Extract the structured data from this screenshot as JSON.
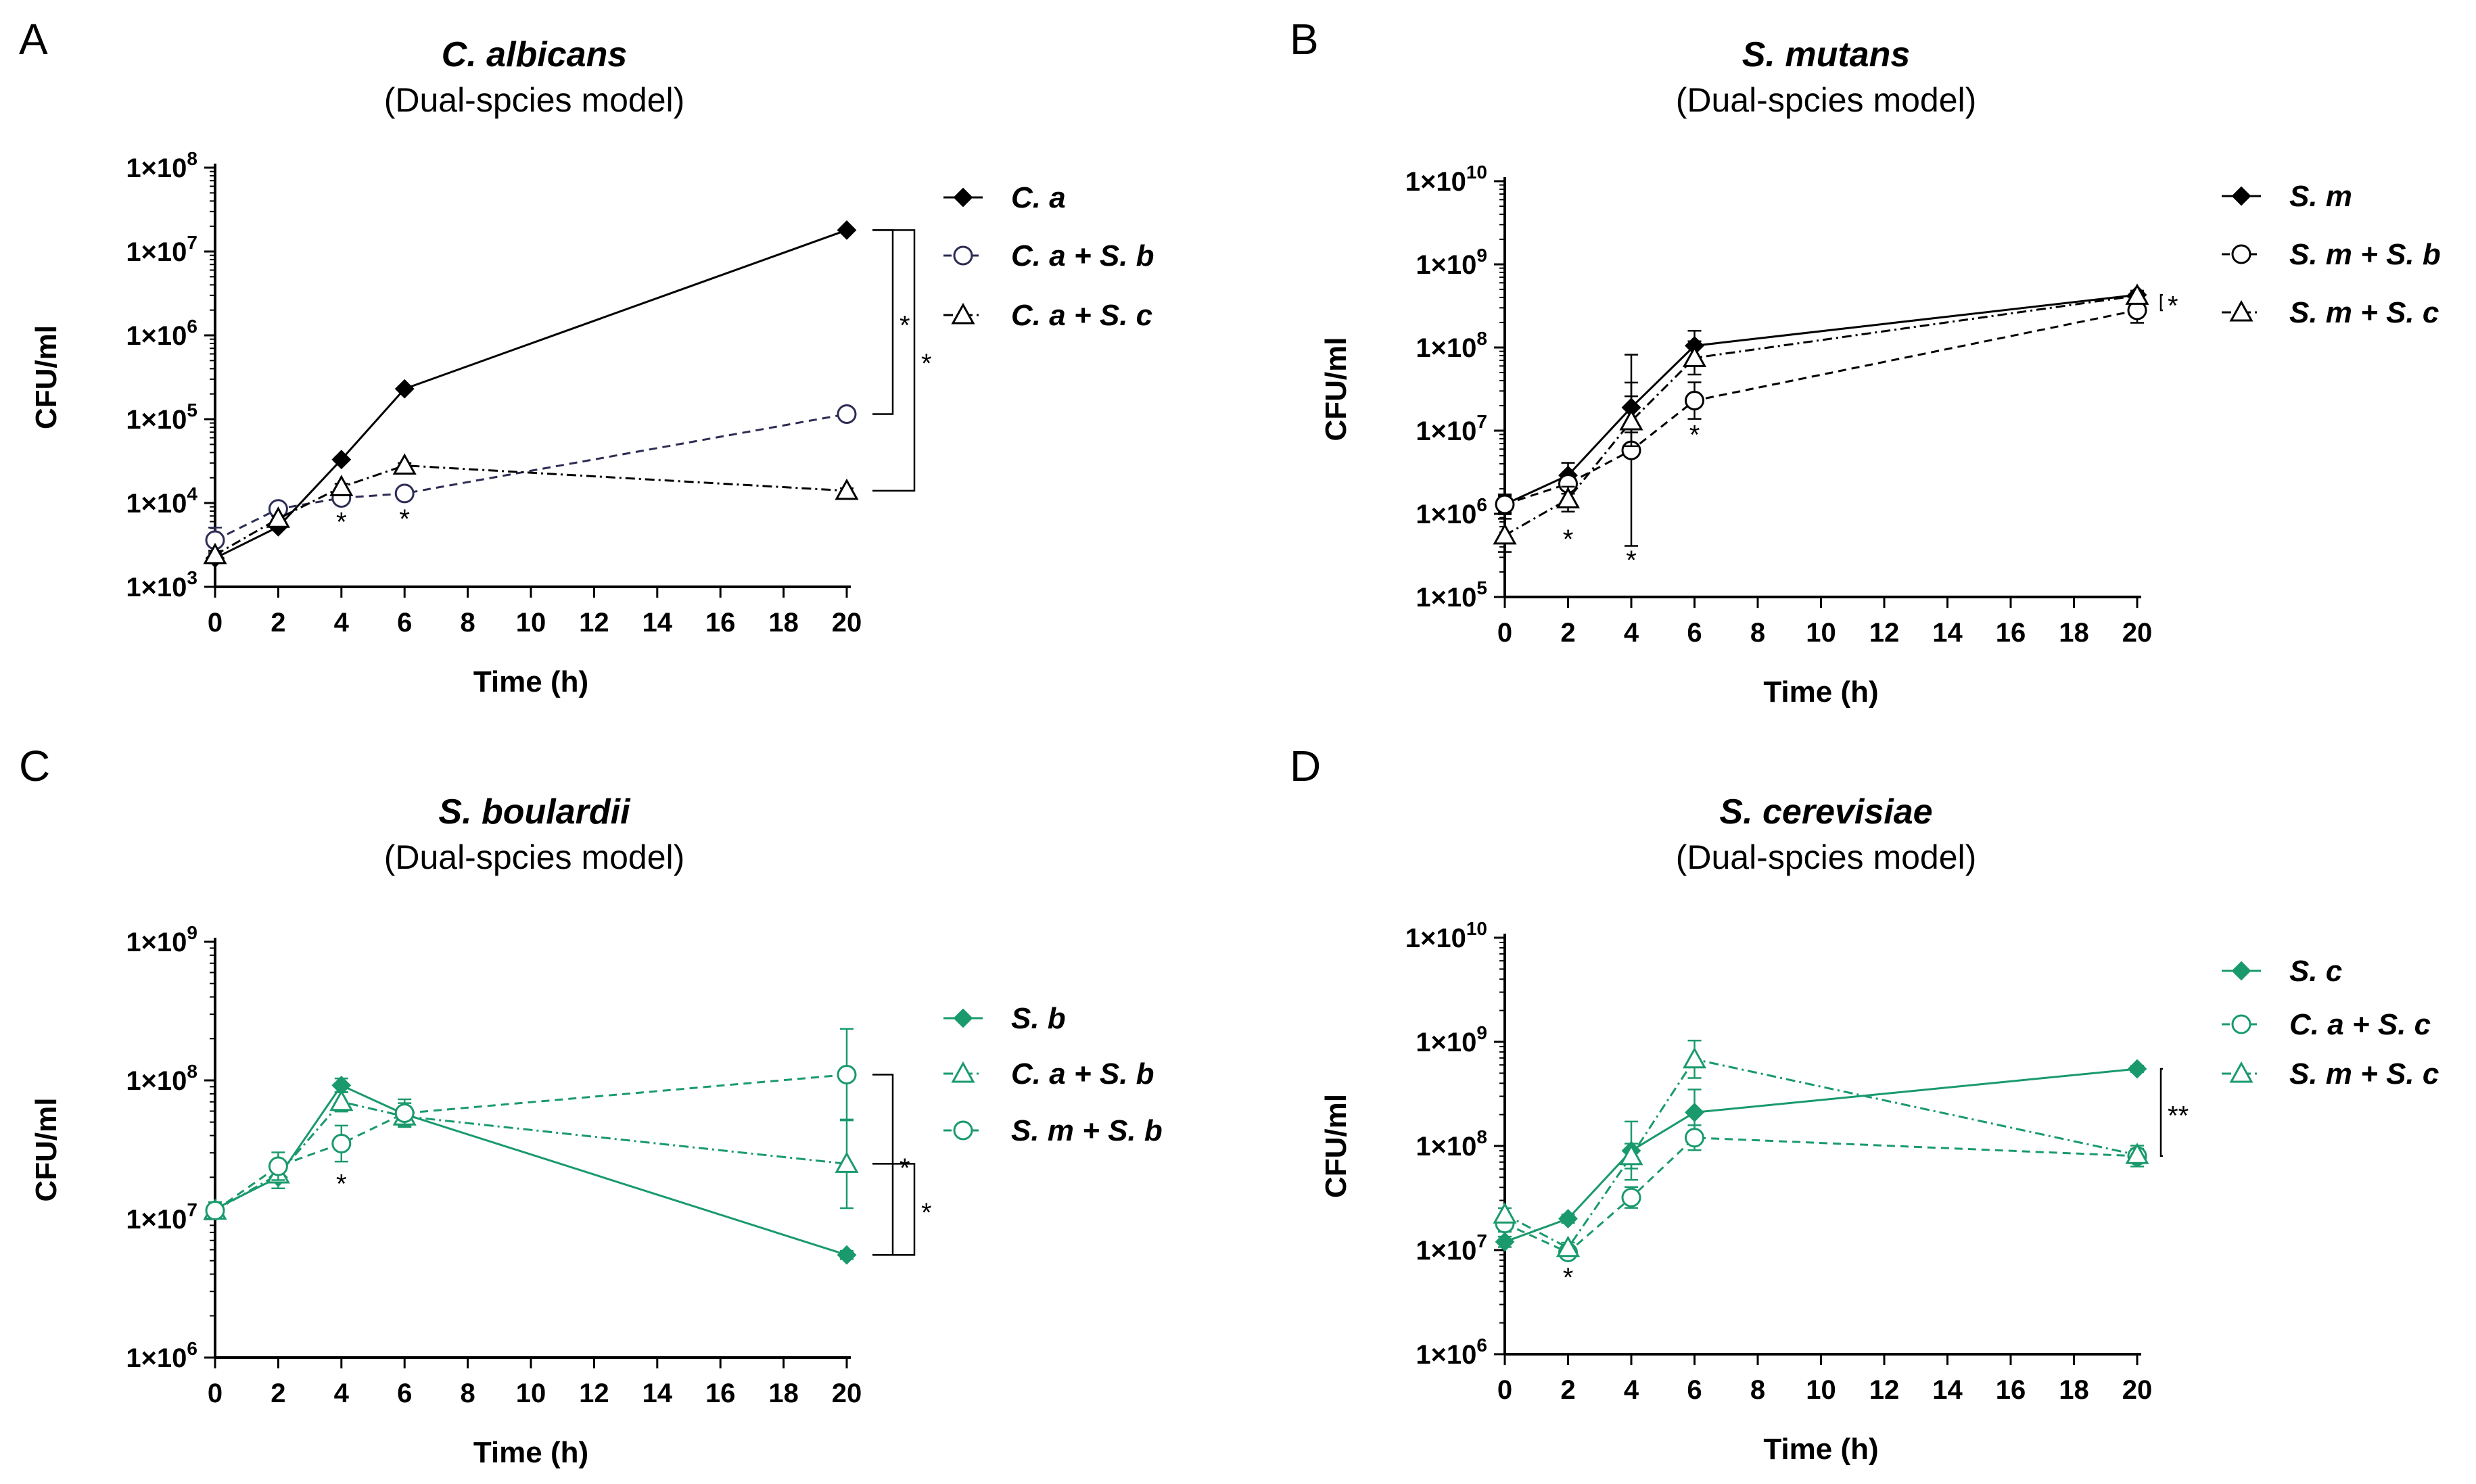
{
  "chart_data": [
    {
      "type": "line",
      "panel": "A",
      "title": "C. albicans",
      "subtitle": "(Dual-spcies model)",
      "xlabel": "Time (h)",
      "ylabel": "CFU/ml",
      "x_ticks": [
        0,
        2,
        4,
        6,
        8,
        10,
        12,
        14,
        16,
        18,
        20
      ],
      "xlim": [
        0,
        20
      ],
      "y_scale": "log",
      "y_exp_range": [
        3,
        8
      ],
      "y_tick_labels": [
        {
          "base": "1×10",
          "exp": "3"
        },
        {
          "base": "1×10",
          "exp": "4"
        },
        {
          "base": "1×10",
          "exp": "5"
        },
        {
          "base": "1×10",
          "exp": "6"
        },
        {
          "base": "1×10",
          "exp": "7"
        },
        {
          "base": "1×10",
          "exp": "8"
        }
      ],
      "legend_position": "right",
      "series": [
        {
          "name": "C. a",
          "marker": "diamond",
          "dash": "solid",
          "color": "#000000",
          "x": [
            0,
            2,
            4,
            6,
            20
          ],
          "y": [
            2200,
            5200,
            33000,
            230000,
            18000000
          ],
          "err": [
            0.06,
            0.03,
            0.03,
            0.03,
            0.02
          ]
        },
        {
          "name": "C. a + S. b",
          "marker": "circle",
          "dash": "dashed",
          "color": "#2c2c54",
          "x": [
            0,
            2,
            4,
            6,
            20
          ],
          "y": [
            3600,
            8500,
            11500,
            13000,
            115000
          ],
          "err": [
            0.15,
            0.04,
            0.06,
            0.04,
            0.05
          ]
        },
        {
          "name": "C. a + S. c",
          "marker": "triangle",
          "dash": "dashdot",
          "color": "#000000",
          "x": [
            0,
            2,
            4,
            6,
            20
          ],
          "y": [
            2400,
            6500,
            15500,
            28000,
            14000
          ],
          "err": [
            0.05,
            0.03,
            0.04,
            0.03,
            0.03
          ]
        }
      ],
      "annotations": [
        {
          "text": "*",
          "x": 4,
          "y": 6000
        },
        {
          "text": "*",
          "x": 6,
          "y": 6500
        },
        {
          "text": "*",
          "bracket": "20h C. a vs C. a + S. b",
          "y_from": 18000000,
          "y_to": 115000
        },
        {
          "text": "*",
          "bracket": "20h C. a vs C. a + S. c",
          "y_from": 18000000,
          "y_to": 14000
        }
      ]
    },
    {
      "type": "line",
      "panel": "B",
      "title": "S. mutans",
      "subtitle": "(Dual-spcies model)",
      "xlabel": "Time (h)",
      "ylabel": "CFU/ml",
      "x_ticks": [
        0,
        2,
        4,
        6,
        8,
        10,
        12,
        14,
        16,
        18,
        20
      ],
      "xlim": [
        0,
        20
      ],
      "y_scale": "log",
      "y_exp_range": [
        5,
        10
      ],
      "y_tick_labels": [
        {
          "base": "1×10",
          "exp": "5"
        },
        {
          "base": "1×10",
          "exp": "6"
        },
        {
          "base": "1×10",
          "exp": "7"
        },
        {
          "base": "1×10",
          "exp": "8"
        },
        {
          "base": "1×10",
          "exp": "9"
        },
        {
          "base": "1×10",
          "exp": "10"
        }
      ],
      "legend_position": "right",
      "series": [
        {
          "name": "S. m",
          "marker": "diamond",
          "dash": "solid",
          "color": "#000000",
          "x": [
            0,
            2,
            4,
            6,
            20
          ],
          "y": [
            1300000,
            2900000,
            19000000,
            105000000,
            430000000
          ],
          "err": [
            0.1,
            0.15,
            0.3,
            0.18,
            0.05
          ]
        },
        {
          "name": "S. m + S. b",
          "marker": "circle",
          "dash": "dashed",
          "color": "#000000",
          "x": [
            0,
            2,
            4,
            6,
            20
          ],
          "y": [
            1300000,
            2300000,
            5800000,
            23000000,
            280000000
          ],
          "err": [
            0.12,
            0.12,
            1.15,
            0.22,
            0.15
          ]
        },
        {
          "name": "S. m + S. c",
          "marker": "triangle",
          "dash": "dashdot",
          "color": "#000000",
          "x": [
            0,
            2,
            4,
            6,
            20
          ],
          "y": [
            550000,
            1500000,
            13000000,
            75000000,
            420000000
          ],
          "err": [
            0.2,
            0.15,
            0.3,
            0.2,
            0.05
          ]
        }
      ],
      "annotations": [
        {
          "text": "*",
          "x": 2,
          "y": 500000
        },
        {
          "text": "*",
          "x": 4,
          "y": 280000
        },
        {
          "text": "*",
          "x": 6,
          "y": 9000000
        },
        {
          "text": "*",
          "bracket": "20h S. m vs S. m + S. b",
          "y_from": 430000000,
          "y_to": 280000000
        }
      ]
    },
    {
      "type": "line",
      "panel": "C",
      "title": "S. boulardii",
      "subtitle": "(Dual-spcies model)",
      "xlabel": "Time (h)",
      "ylabel": "CFU/ml",
      "x_ticks": [
        0,
        2,
        4,
        6,
        8,
        10,
        12,
        14,
        16,
        18,
        20
      ],
      "xlim": [
        0,
        20
      ],
      "y_scale": "log",
      "y_exp_range": [
        6,
        9
      ],
      "y_tick_labels": [
        {
          "base": "1×10",
          "exp": "6"
        },
        {
          "base": "1×10",
          "exp": "7"
        },
        {
          "base": "1×10",
          "exp": "8"
        },
        {
          "base": "1×10",
          "exp": "9"
        }
      ],
      "legend_position": "right",
      "series": [
        {
          "name": "S. b",
          "marker": "diamond",
          "dash": "solid",
          "color": "#1a9a6c",
          "x": [
            0,
            2,
            4,
            6,
            20
          ],
          "y": [
            11800000,
            20000000,
            92000000,
            57000000,
            5500000
          ],
          "err": [
            0.05,
            0.08,
            0.05,
            0.08,
            0.03
          ]
        },
        {
          "name": "C. a + S. b",
          "marker": "triangle",
          "dash": "dashdot",
          "color": "#1a9a6c",
          "x": [
            0,
            2,
            4,
            6,
            20
          ],
          "y": [
            11500000,
            21000000,
            70000000,
            55000000,
            25000000
          ],
          "err": [
            0.04,
            0.06,
            0.07,
            0.07,
            0.32
          ]
        },
        {
          "name": "S. m + S. b",
          "marker": "circle",
          "dash": "dashed",
          "color": "#1a9a6c",
          "x": [
            0,
            2,
            4,
            6,
            20
          ],
          "y": [
            11500000,
            24000000,
            35000000,
            58000000,
            110000000
          ],
          "err": [
            0.04,
            0.1,
            0.13,
            0.1,
            0.33
          ]
        }
      ],
      "annotations": [
        {
          "text": "*",
          "x": 4,
          "y": 18000000
        },
        {
          "text": "*",
          "bracket": "20h S. m + S. b vs S. b",
          "y_from": 110000000,
          "y_to": 5500000
        },
        {
          "text": "*",
          "bracket": "20h C. a + S. b vs S. b",
          "y_from": 25000000,
          "y_to": 5500000
        }
      ]
    },
    {
      "type": "line",
      "panel": "D",
      "title": "S. cerevisiae",
      "subtitle": "(Dual-spcies model)",
      "xlabel": "Time (h)",
      "ylabel": "CFU/ml",
      "x_ticks": [
        0,
        2,
        4,
        6,
        8,
        10,
        12,
        14,
        16,
        18,
        20
      ],
      "xlim": [
        0,
        20
      ],
      "y_scale": "log",
      "y_exp_range": [
        6,
        10
      ],
      "y_tick_labels": [
        {
          "base": "1×10",
          "exp": "6"
        },
        {
          "base": "1×10",
          "exp": "7"
        },
        {
          "base": "1×10",
          "exp": "8"
        },
        {
          "base": "1×10",
          "exp": "9"
        },
        {
          "base": "1×10",
          "exp": "10"
        }
      ],
      "legend_position": "right",
      "series": [
        {
          "name": "S. c",
          "marker": "diamond",
          "dash": "solid",
          "color": "#1a9a6c",
          "x": [
            0,
            2,
            4,
            6,
            20
          ],
          "y": [
            12000000,
            20000000,
            90000000,
            210000000,
            550000000
          ],
          "err": [
            0.05,
            0.04,
            0.28,
            0.22,
            0.03
          ]
        },
        {
          "name": "C. a + S. c",
          "marker": "circle",
          "dash": "dashed",
          "color": "#1a9a6c",
          "x": [
            0,
            2,
            4,
            6,
            20
          ],
          "y": [
            18000000,
            9500000,
            32000000,
            120000000,
            80000000
          ],
          "err": [
            0.08,
            0.06,
            0.1,
            0.12,
            0.1
          ]
        },
        {
          "name": "S. m + S. c",
          "marker": "triangle",
          "dash": "dashdot",
          "color": "#1a9a6c",
          "x": [
            0,
            2,
            4,
            6,
            20
          ],
          "y": [
            22000000,
            10500000,
            80000000,
            680000000,
            82000000
          ],
          "err": [
            0.06,
            0.05,
            0.12,
            0.18,
            0.06
          ]
        }
      ],
      "annotations": [
        {
          "text": "*",
          "x": 2,
          "y": 5500000
        },
        {
          "text": "**",
          "bracket": "20h S. c vs co-cultures",
          "y_from": 550000000,
          "y_to": 80000000
        }
      ]
    }
  ]
}
